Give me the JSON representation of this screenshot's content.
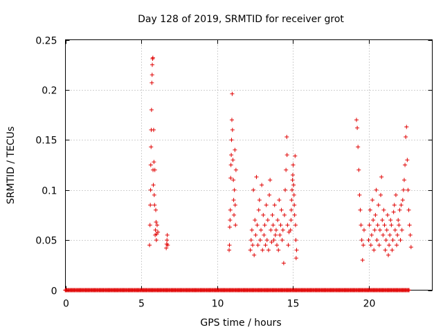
{
  "chart_data": {
    "type": "scatter",
    "title": "Day 128 of 2019, SRMTID for receiver grot",
    "xlabel": "GPS time / hours",
    "ylabel": "SRMTID / TECUs",
    "xlim": [
      0,
      24.2
    ],
    "ylim": [
      0,
      0.25
    ],
    "xticks": [
      0,
      5,
      10,
      15,
      20
    ],
    "xtick_labels": [
      "0",
      "5",
      "10",
      "15",
      "20"
    ],
    "yticks": [
      0,
      0.05,
      0.1,
      0.15,
      0.2,
      0.25
    ],
    "ytick_labels": [
      "0",
      "0.05",
      "0.1",
      "0.15",
      "0.2",
      "0.25"
    ],
    "grid": true,
    "marker": "+",
    "color": "#e00000",
    "series": [
      {
        "name": "SRMTID",
        "points": [
          [
            5.55,
            0.045
          ],
          [
            5.58,
            0.065
          ],
          [
            5.6,
            0.085
          ],
          [
            5.62,
            0.1
          ],
          [
            5.63,
            0.125
          ],
          [
            5.65,
            0.143
          ],
          [
            5.66,
            0.16
          ],
          [
            5.68,
            0.18
          ],
          [
            5.7,
            0.207
          ],
          [
            5.72,
            0.215
          ],
          [
            5.73,
            0.225
          ],
          [
            5.75,
            0.231
          ],
          [
            5.77,
            0.232
          ],
          [
            5.78,
            0.12
          ],
          [
            5.8,
            0.105
          ],
          [
            5.82,
            0.16
          ],
          [
            5.84,
            0.128
          ],
          [
            5.86,
            0.095
          ],
          [
            5.88,
            0.085
          ],
          [
            5.9,
            0.12
          ],
          [
            5.92,
            0.055
          ],
          [
            5.94,
            0.06
          ],
          [
            5.96,
            0.08
          ],
          [
            5.98,
            0.068
          ],
          [
            6.0,
            0.05
          ],
          [
            6.02,
            0.056
          ],
          [
            6.05,
            0.065
          ],
          [
            6.1,
            0.058
          ],
          [
            6.65,
            0.042
          ],
          [
            6.68,
            0.046
          ],
          [
            6.7,
            0.05
          ],
          [
            6.72,
            0.055
          ],
          [
            6.75,
            0.045
          ],
          [
            10.8,
            0.04
          ],
          [
            10.82,
            0.045
          ],
          [
            10.84,
            0.063
          ],
          [
            10.86,
            0.07
          ],
          [
            10.88,
            0.08
          ],
          [
            10.9,
            0.112
          ],
          [
            10.92,
            0.125
          ],
          [
            10.94,
            0.135
          ],
          [
            10.96,
            0.15
          ],
          [
            10.98,
            0.17
          ],
          [
            11.0,
            0.196
          ],
          [
            11.02,
            0.16
          ],
          [
            11.05,
            0.13
          ],
          [
            11.08,
            0.11
          ],
          [
            11.1,
            0.09
          ],
          [
            11.12,
            0.075
          ],
          [
            11.15,
            0.1
          ],
          [
            11.18,
            0.14
          ],
          [
            11.2,
            0.085
          ],
          [
            11.22,
            0.065
          ],
          [
            11.25,
            0.12
          ],
          [
            12.2,
            0.04
          ],
          [
            12.25,
            0.05
          ],
          [
            12.3,
            0.06
          ],
          [
            12.35,
            0.045
          ],
          [
            12.4,
            0.1
          ],
          [
            12.45,
            0.035
          ],
          [
            12.5,
            0.07
          ],
          [
            12.55,
            0.055
          ],
          [
            12.6,
            0.113
          ],
          [
            12.65,
            0.065
          ],
          [
            12.7,
            0.045
          ],
          [
            12.75,
            0.08
          ],
          [
            12.8,
            0.09
          ],
          [
            12.85,
            0.05
          ],
          [
            12.9,
            0.06
          ],
          [
            12.95,
            0.105
          ],
          [
            13.0,
            0.04
          ],
          [
            13.05,
            0.075
          ],
          [
            13.1,
            0.055
          ],
          [
            13.15,
            0.065
          ],
          [
            13.2,
            0.045
          ],
          [
            13.25,
            0.085
          ],
          [
            13.3,
            0.05
          ],
          [
            13.35,
            0.07
          ],
          [
            13.4,
            0.04
          ],
          [
            13.45,
            0.095
          ],
          [
            13.5,
            0.11
          ],
          [
            13.55,
            0.06
          ],
          [
            13.6,
            0.048
          ],
          [
            13.65,
            0.075
          ],
          [
            13.7,
            0.065
          ],
          [
            13.75,
            0.05
          ],
          [
            13.8,
            0.085
          ],
          [
            13.85,
            0.055
          ],
          [
            13.9,
            0.06
          ],
          [
            13.95,
            0.045
          ],
          [
            14.0,
            0.07
          ],
          [
            14.05,
            0.04
          ],
          [
            14.1,
            0.09
          ],
          [
            14.15,
            0.055
          ],
          [
            14.2,
            0.065
          ],
          [
            14.25,
            0.08
          ],
          [
            14.3,
            0.05
          ],
          [
            14.35,
            0.06
          ],
          [
            14.4,
            0.027
          ],
          [
            14.45,
            0.075
          ],
          [
            14.5,
            0.1
          ],
          [
            14.55,
            0.12
          ],
          [
            14.6,
            0.153
          ],
          [
            14.62,
            0.135
          ],
          [
            14.65,
            0.065
          ],
          [
            14.7,
            0.045
          ],
          [
            14.75,
            0.058
          ],
          [
            14.85,
            0.06
          ],
          [
            14.88,
            0.07
          ],
          [
            14.9,
            0.08
          ],
          [
            14.92,
            0.09
          ],
          [
            14.95,
            0.1
          ],
          [
            14.98,
            0.11
          ],
          [
            15.0,
            0.115
          ],
          [
            15.02,
            0.125
          ],
          [
            15.05,
            0.105
          ],
          [
            15.08,
            0.095
          ],
          [
            15.1,
            0.085
          ],
          [
            15.12,
            0.075
          ],
          [
            15.15,
            0.134
          ],
          [
            15.18,
            0.065
          ],
          [
            15.2,
            0.05
          ],
          [
            15.22,
            0.032
          ],
          [
            15.25,
            0.04
          ],
          [
            19.2,
            0.17
          ],
          [
            19.25,
            0.162
          ],
          [
            19.3,
            0.143
          ],
          [
            19.35,
            0.12
          ],
          [
            19.4,
            0.095
          ],
          [
            19.45,
            0.08
          ],
          [
            19.5,
            0.065
          ],
          [
            19.55,
            0.05
          ],
          [
            19.6,
            0.03
          ],
          [
            19.65,
            0.045
          ],
          [
            19.7,
            0.06
          ],
          [
            20.0,
            0.05
          ],
          [
            20.05,
            0.065
          ],
          [
            20.1,
            0.08
          ],
          [
            20.15,
            0.045
          ],
          [
            20.2,
            0.055
          ],
          [
            20.25,
            0.09
          ],
          [
            20.3,
            0.07
          ],
          [
            20.35,
            0.04
          ],
          [
            20.4,
            0.06
          ],
          [
            20.45,
            0.075
          ],
          [
            20.5,
            0.1
          ],
          [
            20.55,
            0.05
          ],
          [
            20.6,
            0.065
          ],
          [
            20.65,
            0.085
          ],
          [
            20.7,
            0.045
          ],
          [
            20.75,
            0.06
          ],
          [
            20.8,
            0.095
          ],
          [
            20.85,
            0.113
          ],
          [
            20.9,
            0.07
          ],
          [
            20.95,
            0.055
          ],
          [
            21.0,
            0.08
          ],
          [
            21.05,
            0.065
          ],
          [
            21.1,
            0.04
          ],
          [
            21.15,
            0.05
          ],
          [
            21.2,
            0.06
          ],
          [
            21.25,
            0.075
          ],
          [
            21.3,
            0.035
          ],
          [
            21.35,
            0.045
          ],
          [
            21.4,
            0.055
          ],
          [
            21.45,
            0.07
          ],
          [
            21.5,
            0.065
          ],
          [
            21.55,
            0.04
          ],
          [
            21.6,
            0.05
          ],
          [
            21.65,
            0.078
          ],
          [
            21.7,
            0.085
          ],
          [
            21.75,
            0.06
          ],
          [
            21.8,
            0.095
          ],
          [
            21.85,
            0.045
          ],
          [
            21.9,
            0.055
          ],
          [
            21.95,
            0.07
          ],
          [
            22.0,
            0.065
          ],
          [
            22.05,
            0.08
          ],
          [
            22.1,
            0.05
          ],
          [
            22.15,
            0.085
          ],
          [
            22.2,
            0.06
          ],
          [
            22.25,
            0.09
          ],
          [
            22.3,
            0.1
          ],
          [
            22.35,
            0.11
          ],
          [
            22.4,
            0.125
          ],
          [
            22.45,
            0.153
          ],
          [
            22.5,
            0.163
          ],
          [
            22.55,
            0.13
          ],
          [
            22.6,
            0.1
          ],
          [
            22.65,
            0.08
          ],
          [
            22.7,
            0.065
          ],
          [
            22.75,
            0.055
          ],
          [
            22.8,
            0.043
          ]
        ],
        "zero_intervals": [
          [
            0.0,
            22.7
          ]
        ]
      }
    ]
  }
}
